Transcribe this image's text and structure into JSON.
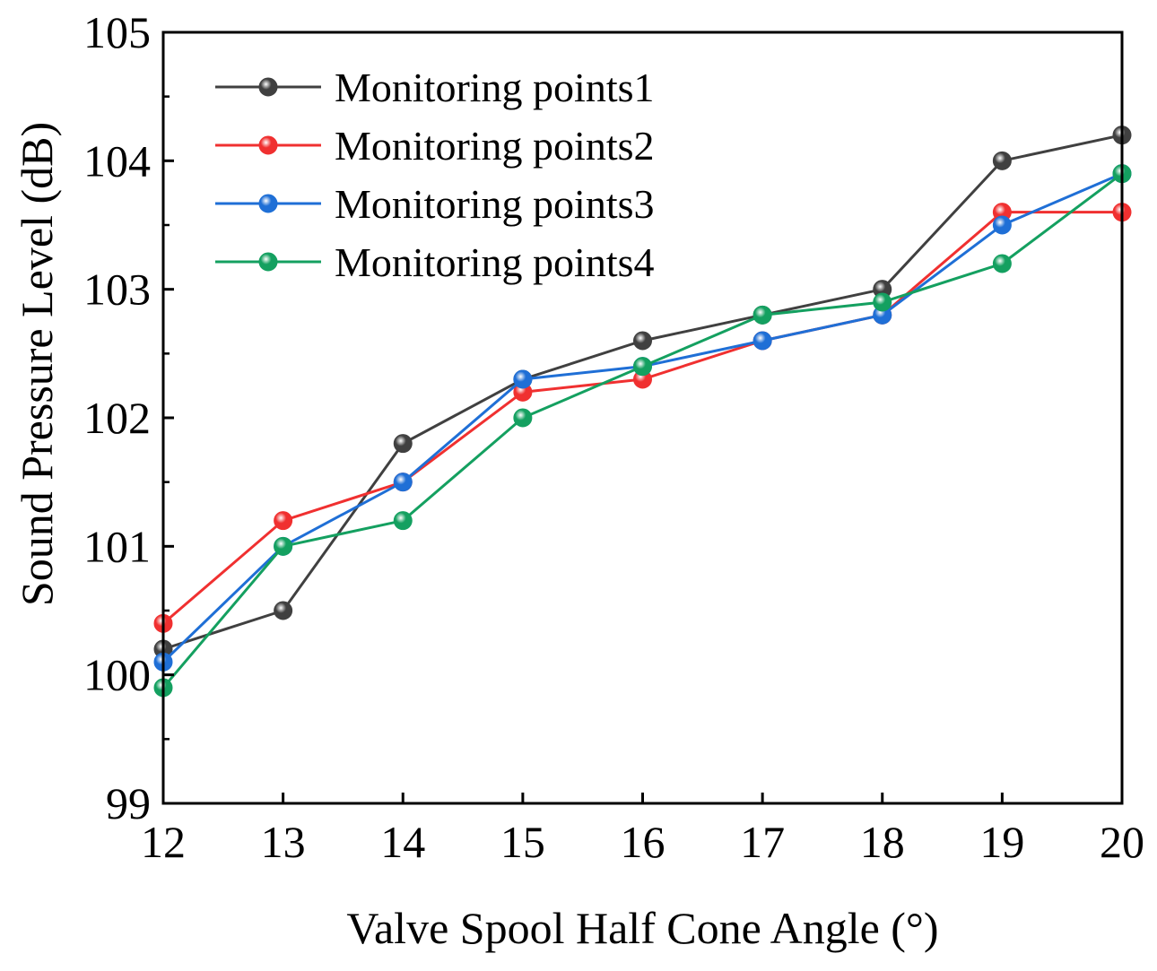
{
  "chart_data": {
    "type": "line",
    "title": "",
    "xlabel": "Valve Spool Half Cone Angle (°)",
    "ylabel": "Sound Pressure Level (dB)",
    "x": [
      12,
      13,
      14,
      15,
      16,
      17,
      18,
      19,
      20
    ],
    "xlim": [
      12,
      20
    ],
    "ylim": [
      99,
      105
    ],
    "xticks": [
      "12",
      "13",
      "14",
      "15",
      "16",
      "17",
      "18",
      "19",
      "20"
    ],
    "yticks": [
      "99",
      "100",
      "101",
      "102",
      "103",
      "104",
      "105"
    ],
    "grid": false,
    "legend_position": "top-left",
    "series": [
      {
        "name": "Monitoring points1",
        "color": "#404040",
        "values": [
          100.2,
          100.5,
          101.8,
          102.3,
          102.6,
          102.8,
          103.0,
          104.0,
          104.2
        ]
      },
      {
        "name": "Monitoring points2",
        "color": "#f03030",
        "values": [
          100.4,
          101.2,
          101.5,
          102.2,
          102.3,
          102.6,
          102.8,
          103.6,
          103.6
        ]
      },
      {
        "name": "Monitoring points3",
        "color": "#1f6fd6",
        "values": [
          100.1,
          101.0,
          101.5,
          102.3,
          102.4,
          102.6,
          102.8,
          103.5,
          103.9
        ]
      },
      {
        "name": "Monitoring points4",
        "color": "#14a060",
        "values": [
          99.9,
          101.0,
          101.2,
          102.0,
          102.4,
          102.8,
          102.9,
          103.2,
          103.9
        ]
      }
    ]
  }
}
